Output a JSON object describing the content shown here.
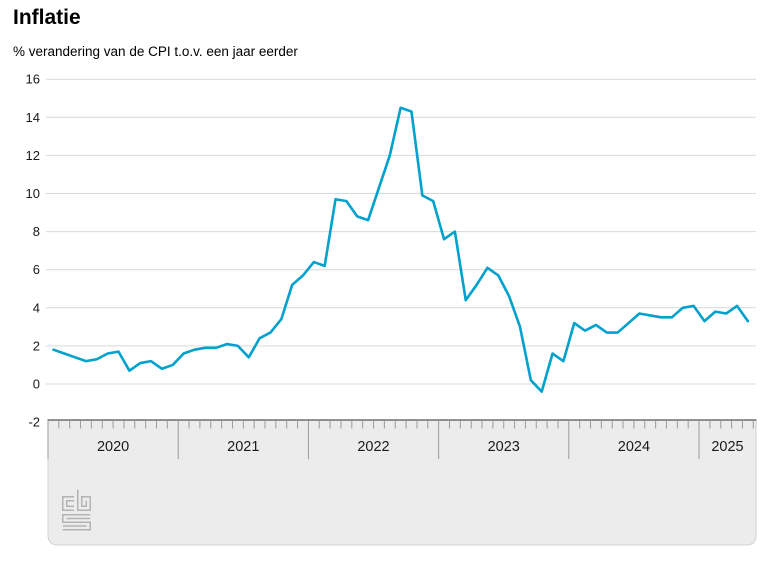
{
  "page": {
    "title": "Inflatie",
    "subtitle": "% verandering van de CPI t.o.v. een jaar eerder",
    "source_logo": "cbs"
  },
  "colors": {
    "line": "#00a1cd",
    "gridline": "#d9d9d9",
    "axis_band_fill": "#ececec",
    "axis_band_edge": "#d2d2d2",
    "axis_band_top_border": "#6e6e6e",
    "tick": "#9b9b9b",
    "text": "#1a1a1a",
    "logo": "#b3b3b3"
  },
  "chart_data": {
    "type": "line",
    "title": "Inflatie",
    "subtitle": "% verandering van de CPI t.o.v. een jaar eerder",
    "unit": "% change of CPI vs one year earlier",
    "frequency": "monthly",
    "x_start": "2020-01",
    "x_end": "2025-05",
    "series": [
      {
        "name": "Inflatie",
        "values": [
          1.8,
          1.6,
          1.4,
          1.2,
          1.3,
          1.6,
          1.7,
          0.7,
          1.1,
          1.2,
          0.8,
          1.0,
          1.6,
          1.8,
          1.9,
          1.9,
          2.1,
          2.0,
          1.4,
          2.4,
          2.7,
          3.4,
          5.2,
          5.7,
          6.4,
          6.2,
          9.7,
          9.6,
          8.8,
          8.6,
          10.3,
          12.0,
          14.5,
          14.3,
          9.9,
          9.6,
          7.6,
          8.0,
          4.4,
          5.2,
          6.1,
          5.7,
          4.6,
          3.0,
          0.2,
          -0.4,
          1.6,
          1.2,
          3.2,
          2.8,
          3.1,
          2.7,
          2.7,
          3.2,
          3.7,
          3.6,
          3.5,
          3.5,
          4.0,
          4.1,
          3.3,
          3.8,
          3.7,
          4.1,
          3.3
        ]
      }
    ],
    "xtick_labels": [
      "2020",
      "2021",
      "2022",
      "2023",
      "2024",
      "2025"
    ],
    "yticks": [
      -2,
      0,
      2,
      4,
      6,
      8,
      10,
      12,
      14,
      16
    ],
    "ylim": [
      -2,
      16
    ],
    "grid": "horizontal",
    "legend": "none",
    "line_color": "#00a1cd"
  }
}
